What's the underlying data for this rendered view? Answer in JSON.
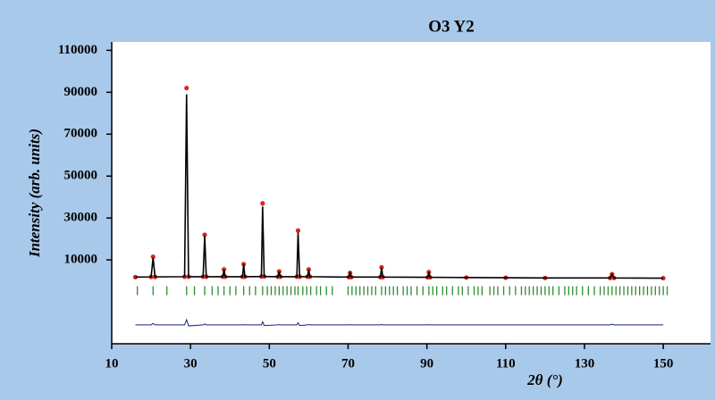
{
  "chart_data": {
    "type": "rietveld",
    "title": "O3 Y2",
    "y_label": "Intensity (arb. units)",
    "x_label": "2θ (°)",
    "xlim": [
      10,
      162
    ],
    "ylim": [
      -30000,
      114000
    ],
    "xticks": [
      10,
      30,
      50,
      70,
      90,
      110,
      130,
      150
    ],
    "yticks": [
      10000,
      30000,
      50000,
      70000,
      90000,
      110000
    ],
    "x": [
      16,
      20,
      20.5,
      21,
      28.5,
      29,
      29.5,
      33.2,
      33.6,
      34,
      38.2,
      38.5,
      38.8,
      43.2,
      43.5,
      43.8,
      48,
      48.3,
      48.7,
      52.2,
      52.5,
      52.8,
      57,
      57.3,
      57.7,
      59.7,
      60,
      60.3,
      70.2,
      70.5,
      70.8,
      78.2,
      78.5,
      78.8,
      90.2,
      90.5,
      90.8,
      100,
      110,
      120,
      136.5,
      137,
      137.5,
      150
    ],
    "series": [
      {
        "color": "#d42a1e",
        "values": [
          1800,
          1900,
          11500,
          1900,
          2000,
          92000,
          2000,
          2000,
          22000,
          2000,
          2000,
          5500,
          2000,
          2000,
          8000,
          2000,
          2100,
          37000,
          2100,
          2000,
          4500,
          2000,
          2000,
          24000,
          2000,
          2000,
          5500,
          2000,
          1800,
          3800,
          1800,
          1800,
          6500,
          1800,
          1700,
          4200,
          1700,
          1600,
          1500,
          1400,
          1400,
          3200,
          1400,
          1300
        ]
      },
      {
        "color": "#000000",
        "values": [
          1800,
          1900,
          11000,
          1900,
          2000,
          89000,
          2000,
          2000,
          21500,
          2000,
          2000,
          5300,
          2000,
          2000,
          7800,
          2000,
          2100,
          35500,
          2100,
          2000,
          4400,
          2000,
          2000,
          23000,
          2000,
          2000,
          5300,
          2000,
          1800,
          3700,
          1800,
          1800,
          6300,
          1800,
          1700,
          4100,
          1700,
          1600,
          1500,
          1400,
          1400,
          3100,
          1400,
          1300
        ]
      },
      {
        "color": "#1a237e",
        "values": [
          -21000,
          -21000,
          -20300,
          -21000,
          -21000,
          -18500,
          -21500,
          -21000,
          -20600,
          -21000,
          -21000,
          -20900,
          -21000,
          -21000,
          -20900,
          -21000,
          -21000,
          -19500,
          -21300,
          -21000,
          -20900,
          -21000,
          -21000,
          -20000,
          -21300,
          -21000,
          -20800,
          -21000,
          -21000,
          -20900,
          -21000,
          -21000,
          -20800,
          -21000,
          -21000,
          -20900,
          -21000,
          -21000,
          -21000,
          -21000,
          -21000,
          -20700,
          -21000,
          -21000
        ]
      }
    ],
    "bragg_color": "#2e8b2e",
    "bragg_positions": [
      16.5,
      20.5,
      24,
      29,
      31,
      33.6,
      35.5,
      37,
      38.5,
      40,
      41.5,
      43.5,
      45,
      46.5,
      48.3,
      49.5,
      50.5,
      51.5,
      52.5,
      53.5,
      54.5,
      55.5,
      56.5,
      57.3,
      58.5,
      59.5,
      60.5,
      62,
      63,
      64.5,
      66,
      70,
      71,
      72,
      73,
      74,
      75,
      76,
      77,
      78.5,
      79.5,
      80.5,
      81.5,
      82.5,
      84,
      85,
      86,
      87.5,
      89,
      90.5,
      91.5,
      92.5,
      94,
      95,
      96.5,
      98,
      99,
      100.5,
      102,
      103,
      104,
      106,
      107,
      108,
      109.5,
      111,
      112.5,
      114,
      115,
      116,
      117,
      118,
      119,
      120,
      121,
      122,
      123.5,
      125,
      126,
      127,
      128,
      129.5,
      131,
      132.5,
      134,
      135,
      136,
      137,
      138,
      139,
      140,
      141,
      142,
      143,
      144,
      145,
      146,
      147,
      148,
      149,
      150,
      151
    ]
  }
}
